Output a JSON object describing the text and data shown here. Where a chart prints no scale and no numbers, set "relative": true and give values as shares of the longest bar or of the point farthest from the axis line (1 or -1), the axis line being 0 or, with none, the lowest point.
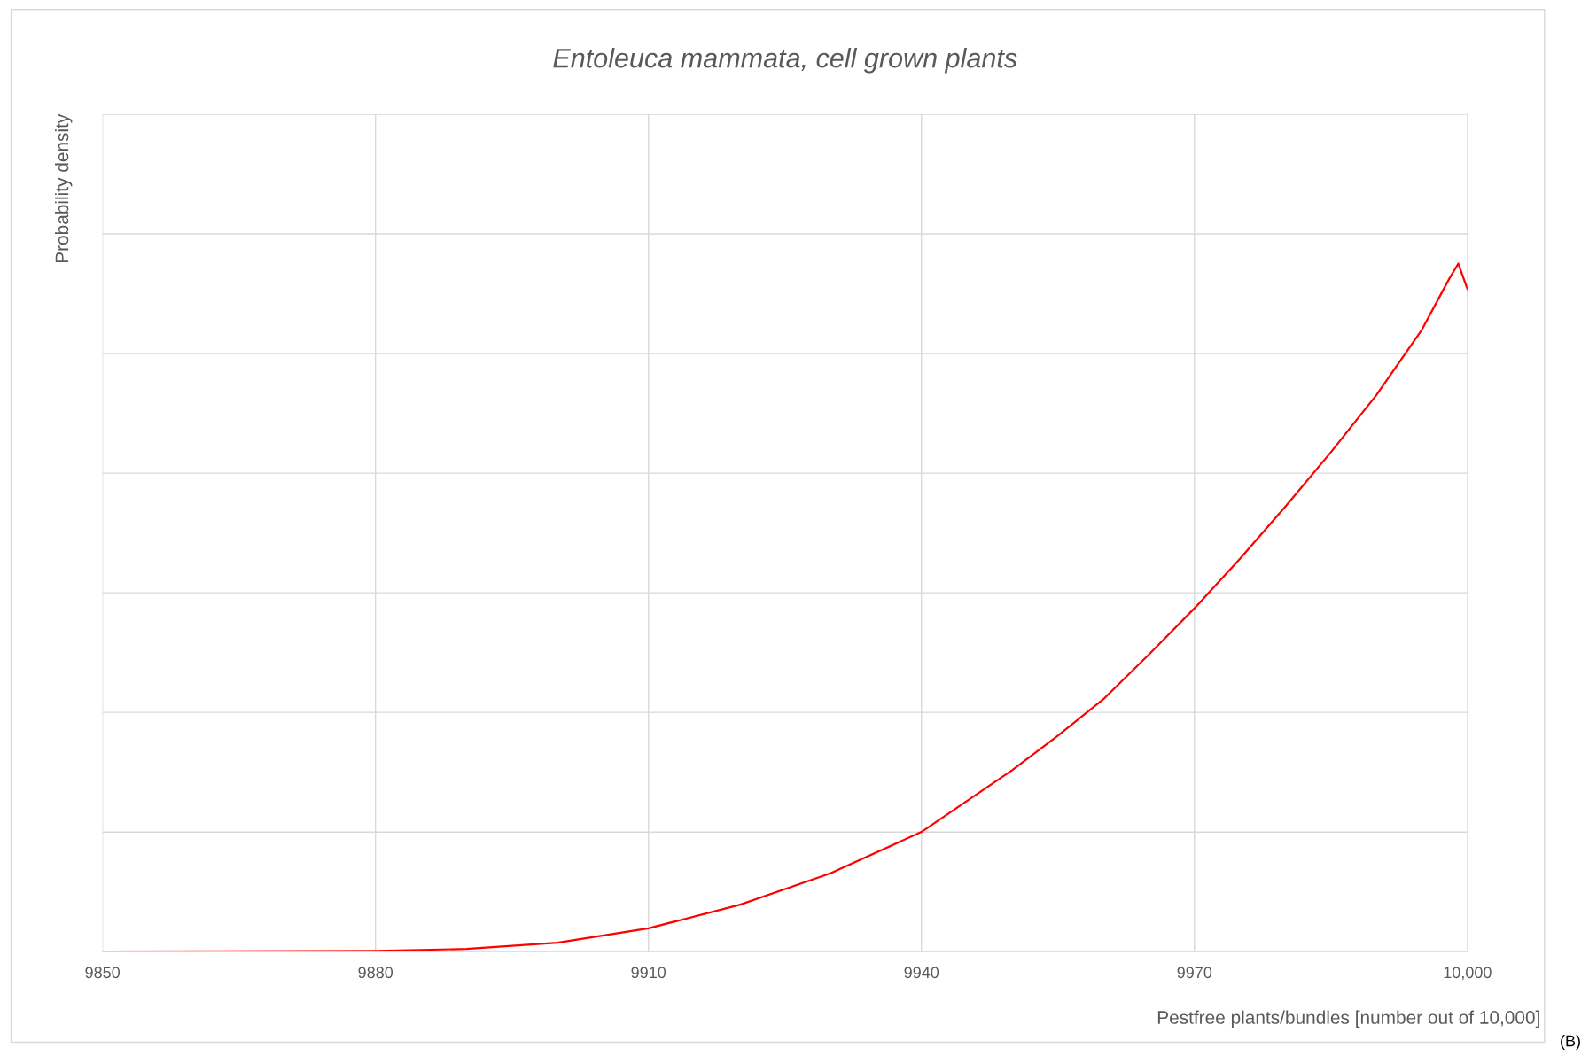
{
  "chart_data": {
    "type": "line",
    "title": "Entoleuca mammata, cell grown plants",
    "xlabel": "Pestfree plants/bundles [number out of 10,000]",
    "ylabel": "Probability density",
    "annotations": [
      "(B)"
    ],
    "relative": true,
    "x": [
      9850,
      9880,
      9890,
      9900,
      9910,
      9920,
      9930,
      9940,
      9950,
      9955,
      9960,
      9965,
      9970,
      9975,
      9980,
      9985,
      9990,
      9995,
      9998,
      9999,
      10000
    ],
    "series": [
      {
        "color": "#ff0000",
        "values": [
          0,
          0.001,
          0.004,
          0.013,
          0.034,
          0.068,
          0.114,
          0.174,
          0.264,
          0.314,
          0.367,
          0.432,
          0.499,
          0.571,
          0.647,
          0.726,
          0.809,
          0.904,
          0.978,
          1.0,
          0.963
        ]
      }
    ],
    "xlim": [
      9850,
      10000
    ],
    "xticks": [
      9850,
      9880,
      9910,
      9940,
      9970,
      {
        "value": 10000,
        "label": "10,000"
      }
    ],
    "grid": true,
    "legend": false,
    "marker": "none",
    "line_style": "solid"
  }
}
